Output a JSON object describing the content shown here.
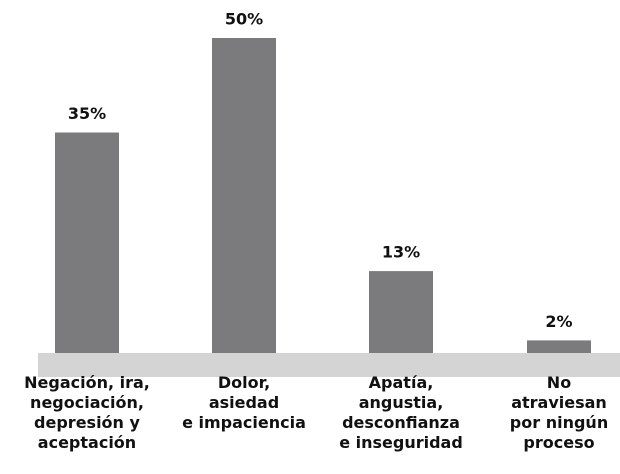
{
  "chart_data": {
    "type": "bar",
    "categories": [
      "Negación, ira,\nnegociación,\ndepresión y\naceptación",
      "Dolor,\nasiedad\ne impaciencia",
      "Apatía,\nangustia,\ndesconfianza\ne inseguridad",
      "No\natraviesan\npor ningún\nproceso"
    ],
    "values": [
      35,
      50,
      13,
      2
    ],
    "value_labels": [
      "35%",
      "50%",
      "13%",
      "2%"
    ],
    "color": "#7b7b7d"
  }
}
